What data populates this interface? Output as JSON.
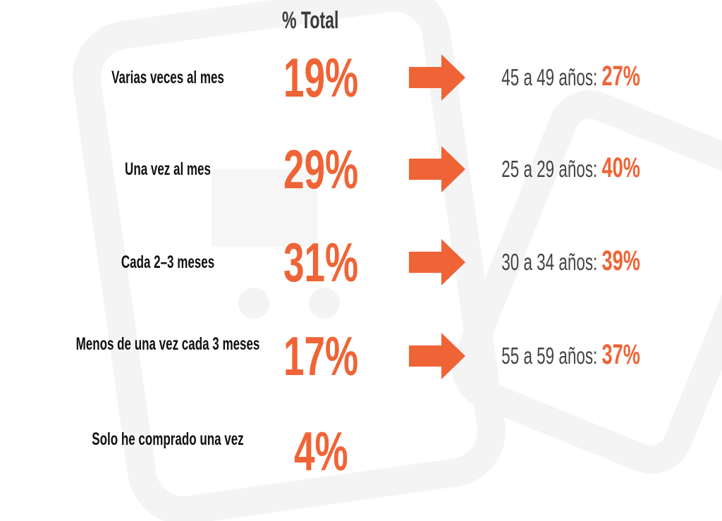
{
  "header": {
    "title": "% Total"
  },
  "rows": [
    {
      "label": "Varias veces al mes",
      "total": "19%",
      "detail": "45 a 49 años:",
      "detail_value": "27%"
    },
    {
      "label": "Una vez al mes",
      "total": "29%",
      "detail": "25 a 29 años:",
      "detail_value": "40%"
    },
    {
      "label": "Cada 2–3 meses",
      "total": "31%",
      "detail": "30 a 34 años:",
      "detail_value": "39%"
    },
    {
      "label": "Menos de una vez cada 3 meses",
      "total": "17%",
      "detail": "55 a 59 años:",
      "detail_value": "37%"
    },
    {
      "label": "Solo he comprado una vez",
      "total": "4%"
    }
  ]
}
